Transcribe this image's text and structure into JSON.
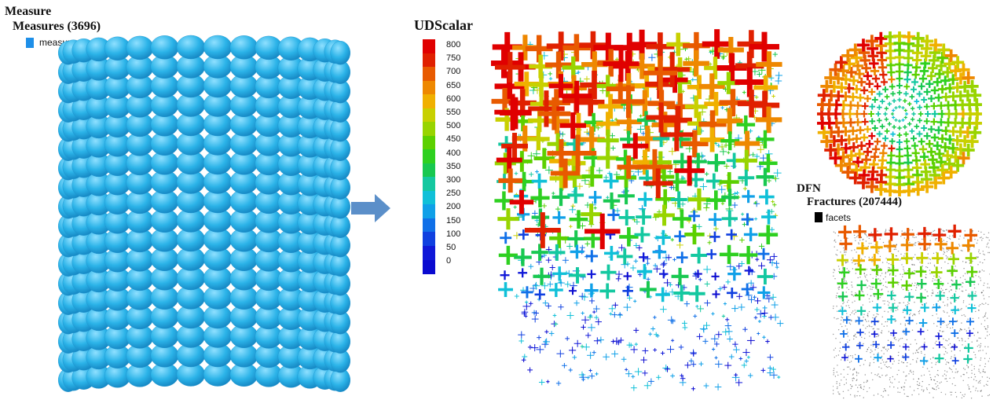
{
  "measure_panel": {
    "title": "Measure",
    "subtitle": "Measures (3696)",
    "legend_label": "measure",
    "sphere_color": "#2bb3e8",
    "legend_color": "#1e8fe8"
  },
  "arrow": {
    "color": "#5b8fc9"
  },
  "colorbar": {
    "title": "UDScalar",
    "ticks": [
      "800",
      "750",
      "700",
      "650",
      "600",
      "550",
      "500",
      "450",
      "400",
      "350",
      "300",
      "250",
      "200",
      "150",
      "100",
      "50",
      "0"
    ],
    "colors": [
      "#e00000",
      "#e02000",
      "#e85a00",
      "#ee8800",
      "#f0b000",
      "#c8d000",
      "#98d400",
      "#5cd000",
      "#2ed020",
      "#18c850",
      "#14c8a0",
      "#10c0d8",
      "#10a0e8",
      "#1070e8",
      "#1040e0",
      "#1018d8",
      "#0a0ad0"
    ]
  },
  "dfn_panel": {
    "title": "DFN",
    "subtitle": "Fractures (207444)",
    "legend_label": "facets",
    "legend_color": "#000000"
  }
}
